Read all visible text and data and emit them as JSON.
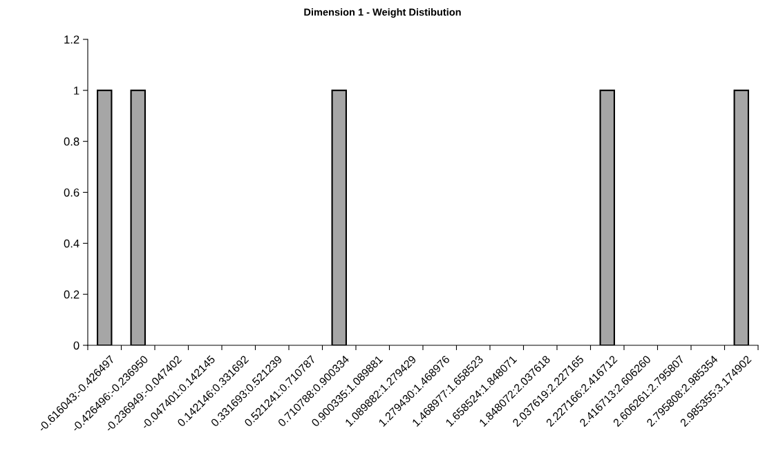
{
  "chart_data": {
    "type": "bar",
    "title": "Dimension 1 - Weight Distibution",
    "categories": [
      "-0.616043:-0.426497",
      "-0.426496:-0.236950",
      "-0.236949:-0.047402",
      "-0.047401:0.142145",
      "0.142146:0.331692",
      "0.331693:0.521239",
      "0.521241:0.710787",
      "0.710788:0.900334",
      "0.900335:1.089881",
      "1.089882:1.279429",
      "1.279430:1.468976",
      "1.468977:1.658523",
      "1.658524:1.848071",
      "1.848072:2.037618",
      "2.037619:2.227165",
      "2.227166:2.416712",
      "2.416713:2.606260",
      "2.606261:2.795807",
      "2.795808:2.985354",
      "2.985355:3.174902"
    ],
    "values": [
      1,
      1,
      0,
      0,
      0,
      0,
      0,
      1,
      0,
      0,
      0,
      0,
      0,
      0,
      0,
      1,
      0,
      0,
      0,
      1
    ],
    "color": "#a6a6a6",
    "ylim": [
      0,
      1.2
    ],
    "yticks": [
      0,
      0.2,
      0.4,
      0.6,
      0.8,
      1,
      1.2
    ],
    "grid": false
  }
}
